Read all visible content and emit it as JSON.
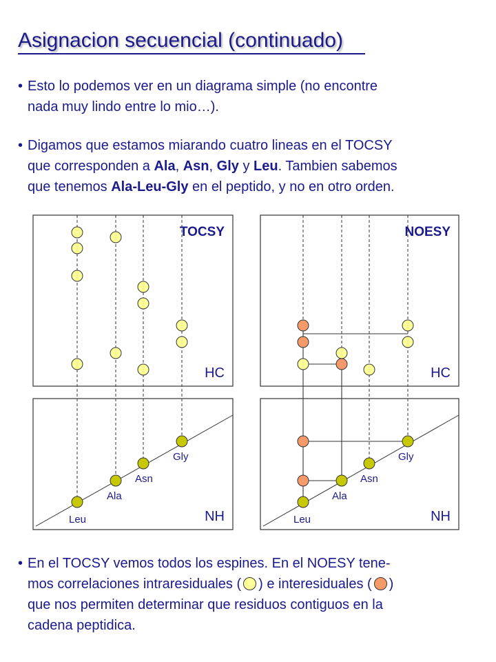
{
  "title": "Asignacion secuencial (continuado)",
  "paragraph1": {
    "line1": "Esto lo podemos ver en un diagrama simple (no encontre",
    "line2": "nada muy lindo entre lo mio…)."
  },
  "paragraph2": {
    "line1_pre": "Digamos que estamos miarando cuatro lineas en el TOCSY",
    "line2_pre": "que corresponden a ",
    "ala": "Ala",
    "sep1": ", ",
    "asn": "Asn",
    "sep2": ", ",
    "gly": "Gly",
    "sep3": " y ",
    "leu": "Leu",
    "line2_post": ". Tambien sabemos",
    "line3_pre": "que tenemos ",
    "sequence": "Ala-Leu-Gly",
    "line3_post": " en el peptido, y no en otro orden."
  },
  "paragraph3": {
    "line1": "En el TOCSY vemos todos los espines. En el NOESY tene-",
    "line2_pre": "mos correlaciones intraresiduales (",
    "line2_mid": ") e interesiduales (",
    "line2_post": ")",
    "line3": "que  nos permiten determinar que residuos contiguos en la",
    "line4": "cadena peptidica."
  },
  "panels": {
    "tocsy": {
      "title": "TOCSY",
      "hc_label": "HC",
      "nh_label": "NH"
    },
    "noesy": {
      "title": "NOESY",
      "hc_label": "HC",
      "nh_label": "NH"
    }
  },
  "residues": {
    "leu": "Leu",
    "ala": "Ala",
    "asn": "Asn",
    "gly": "Gly"
  },
  "colors": {
    "text": "#1a1a8c",
    "intra_peak": "#ffff99",
    "inter_peak": "#f79a6a",
    "diagonal_peak": "#c8c800"
  }
}
